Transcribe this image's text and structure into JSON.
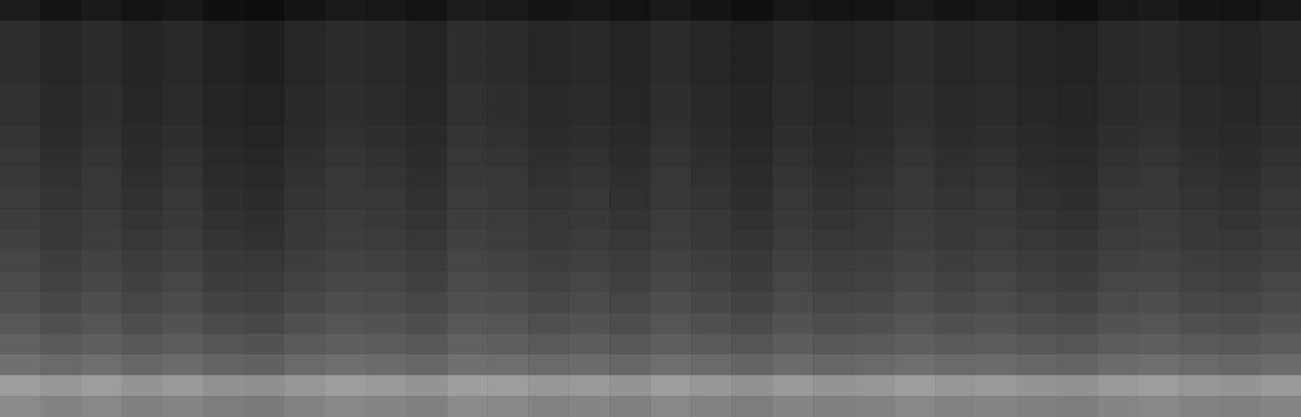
{
  "chart_data": {
    "type": "heatmap",
    "tick_labels": false,
    "color_range": [
      0,
      100
    ],
    "cells": [
      [
        11,
        8,
        10,
        7,
        9,
        6,
        5,
        8,
        10,
        9,
        7,
        11,
        10,
        8,
        9,
        7,
        10,
        8,
        6,
        9,
        7,
        8,
        10,
        8,
        9,
        7,
        6,
        9,
        10,
        8,
        7,
        9
      ],
      [
        18,
        15,
        17,
        14,
        16,
        13,
        12,
        15,
        17,
        16,
        14,
        18,
        17,
        15,
        16,
        14,
        17,
        15,
        13,
        16,
        14,
        15,
        17,
        15,
        16,
        14,
        13,
        16,
        17,
        15,
        14,
        16
      ],
      [
        18,
        15,
        17,
        14,
        16,
        13,
        12,
        15,
        17,
        16,
        14,
        18,
        17,
        15,
        16,
        14,
        17,
        15,
        13,
        16,
        14,
        15,
        17,
        15,
        16,
        14,
        13,
        16,
        17,
        15,
        14,
        16
      ],
      [
        18,
        15,
        17,
        14,
        16,
        13,
        12,
        15,
        17,
        16,
        14,
        18,
        17,
        15,
        16,
        14,
        17,
        15,
        13,
        16,
        14,
        15,
        17,
        15,
        16,
        14,
        13,
        16,
        17,
        15,
        14,
        16
      ],
      [
        19,
        16,
        18,
        15,
        17,
        14,
        13,
        16,
        18,
        17,
        15,
        19,
        18,
        16,
        17,
        15,
        18,
        16,
        14,
        17,
        15,
        16,
        18,
        16,
        17,
        15,
        14,
        17,
        18,
        16,
        15,
        17
      ],
      [
        19,
        16,
        18,
        15,
        17,
        14,
        13,
        16,
        18,
        17,
        15,
        19,
        18,
        16,
        17,
        15,
        18,
        16,
        14,
        17,
        15,
        16,
        18,
        16,
        17,
        15,
        14,
        17,
        18,
        16,
        15,
        17
      ],
      [
        20,
        17,
        19,
        16,
        18,
        15,
        14,
        17,
        19,
        18,
        16,
        20,
        19,
        17,
        18,
        16,
        19,
        17,
        15,
        18,
        16,
        17,
        19,
        17,
        18,
        16,
        15,
        18,
        19,
        17,
        16,
        18
      ],
      [
        21,
        18,
        20,
        17,
        19,
        16,
        15,
        18,
        20,
        19,
        17,
        21,
        20,
        18,
        19,
        17,
        20,
        18,
        16,
        19,
        17,
        18,
        20,
        18,
        19,
        17,
        16,
        19,
        20,
        18,
        17,
        19
      ],
      [
        22,
        19,
        21,
        18,
        20,
        17,
        16,
        19,
        21,
        20,
        18,
        22,
        21,
        19,
        20,
        18,
        21,
        19,
        17,
        20,
        18,
        19,
        21,
        19,
        20,
        18,
        17,
        20,
        21,
        19,
        18,
        20
      ],
      [
        23,
        20,
        22,
        19,
        21,
        18,
        17,
        20,
        22,
        21,
        19,
        23,
        22,
        20,
        21,
        19,
        22,
        20,
        18,
        21,
        19,
        20,
        22,
        20,
        21,
        19,
        18,
        21,
        22,
        20,
        19,
        21
      ],
      [
        24,
        21,
        23,
        20,
        22,
        19,
        18,
        21,
        23,
        22,
        20,
        24,
        23,
        21,
        22,
        20,
        23,
        21,
        19,
        22,
        20,
        21,
        23,
        21,
        22,
        20,
        19,
        22,
        23,
        21,
        20,
        22
      ],
      [
        25,
        22,
        24,
        21,
        23,
        20,
        19,
        22,
        24,
        23,
        21,
        25,
        24,
        22,
        23,
        21,
        24,
        22,
        20,
        23,
        21,
        22,
        24,
        22,
        23,
        21,
        20,
        23,
        24,
        22,
        21,
        23
      ],
      [
        27,
        24,
        26,
        23,
        25,
        22,
        21,
        24,
        26,
        25,
        23,
        27,
        26,
        24,
        25,
        23,
        26,
        24,
        22,
        25,
        23,
        24,
        26,
        24,
        25,
        23,
        22,
        25,
        26,
        24,
        23,
        25
      ],
      [
        29,
        26,
        28,
        25,
        27,
        24,
        23,
        26,
        28,
        27,
        25,
        29,
        28,
        26,
        27,
        25,
        28,
        26,
        24,
        27,
        25,
        26,
        28,
        26,
        27,
        25,
        24,
        27,
        28,
        26,
        25,
        27
      ],
      [
        31,
        28,
        30,
        27,
        29,
        26,
        25,
        28,
        30,
        29,
        27,
        31,
        30,
        28,
        29,
        27,
        30,
        28,
        26,
        29,
        27,
        28,
        30,
        28,
        29,
        27,
        26,
        29,
        30,
        28,
        27,
        29
      ],
      [
        34,
        31,
        33,
        30,
        32,
        29,
        28,
        31,
        33,
        32,
        30,
        34,
        33,
        31,
        32,
        30,
        33,
        31,
        29,
        32,
        30,
        31,
        33,
        31,
        32,
        30,
        29,
        32,
        33,
        31,
        30,
        32
      ],
      [
        38,
        35,
        37,
        34,
        36,
        33,
        32,
        35,
        37,
        36,
        34,
        38,
        37,
        35,
        36,
        34,
        37,
        35,
        33,
        36,
        34,
        35,
        37,
        35,
        36,
        34,
        33,
        36,
        37,
        35,
        34,
        36
      ],
      [
        44,
        41,
        43,
        40,
        42,
        39,
        38,
        41,
        43,
        42,
        40,
        44,
        43,
        41,
        42,
        40,
        43,
        41,
        39,
        42,
        40,
        41,
        43,
        41,
        42,
        40,
        39,
        42,
        43,
        41,
        40,
        42
      ],
      [
        62,
        59,
        61,
        58,
        60,
        57,
        56,
        59,
        61,
        60,
        58,
        62,
        61,
        59,
        60,
        58,
        61,
        59,
        57,
        60,
        58,
        59,
        61,
        59,
        60,
        58,
        57,
        60,
        61,
        59,
        58,
        60
      ],
      [
        54,
        51,
        53,
        50,
        52,
        49,
        48,
        51,
        53,
        52,
        50,
        54,
        53,
        51,
        52,
        50,
        53,
        51,
        49,
        52,
        50,
        51,
        53,
        51,
        52,
        50,
        49,
        52,
        53,
        51,
        50,
        52
      ]
    ]
  }
}
